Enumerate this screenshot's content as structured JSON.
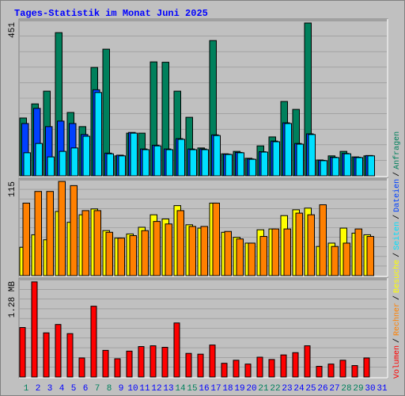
{
  "title": "Tages-Statistik im Monat Juni 2025",
  "legend_separator": "/",
  "chart_data": [
    {
      "type": "bar",
      "ylim": [
        0,
        451
      ],
      "yticks": [
        451
      ],
      "series": [
        {
          "name": "Anfragen",
          "color": "#00805c",
          "values": [
            168,
            209,
            246,
            416,
            184,
            143,
            315,
            368,
            58,
            124,
            124,
            331,
            330,
            246,
            170,
            81,
            393,
            64,
            71,
            51,
            87,
            113,
            216,
            193,
            444,
            46,
            58,
            71,
            55,
            58,
            null
          ]
        },
        {
          "name": "Dateien",
          "color": "#0040ff",
          "values": [
            152,
            196,
            143,
            159,
            152,
            120,
            250,
            66,
            60,
            126,
            78,
            89,
            78,
            108,
            78,
            78,
            119,
            63,
            68,
            49,
            70,
            101,
            154,
            94,
            122,
            45,
            54,
            65,
            54,
            59,
            null
          ]
        },
        {
          "name": "Seiten",
          "color": "#00e0ff",
          "values": [
            67,
            94,
            55,
            71,
            81,
            115,
            242,
            64,
            58,
            124,
            76,
            87,
            76,
            106,
            76,
            76,
            117,
            62,
            67,
            48,
            69,
            99,
            152,
            92,
            120,
            44,
            53,
            64,
            53,
            58,
            null
          ]
        }
      ]
    },
    {
      "type": "bar",
      "ylim": [
        0,
        115
      ],
      "yticks": [
        115
      ],
      "series": [
        {
          "name": "Besuche",
          "color": "#ffff00",
          "values": [
            34,
            49,
            43,
            77,
            64,
            73,
            80,
            54,
            45,
            50,
            58,
            73,
            68,
            84,
            61,
            57,
            87,
            52,
            46,
            39,
            55,
            56,
            72,
            79,
            81,
            35,
            39,
            57,
            51,
            49,
            null
          ]
        },
        {
          "name": "Rechner",
          "color": "#ff8000",
          "values": [
            87,
            101,
            101,
            113,
            108,
            78,
            78,
            52,
            45,
            48,
            54,
            65,
            62,
            78,
            59,
            59,
            87,
            53,
            44,
            39,
            47,
            56,
            56,
            75,
            73,
            85,
            35,
            39,
            56,
            47,
            null
          ]
        }
      ]
    },
    {
      "type": "bar",
      "ylim": [
        0,
        1.28
      ],
      "yticks": [
        {
          "value": 1.28,
          "label": "1.28 MB"
        }
      ],
      "categories": [
        "1",
        "2",
        "3",
        "4",
        "5",
        "6",
        "7",
        "8",
        "9",
        "10",
        "11",
        "12",
        "13",
        "14",
        "15",
        "16",
        "17",
        "18",
        "19",
        "20",
        "21",
        "22",
        "23",
        "24",
        "25",
        "26",
        "27",
        "28",
        "29",
        "30",
        "31"
      ],
      "category_colors": [
        "#00805c",
        "#0000ff",
        "#0000ff",
        "#0000ff",
        "#0000ff",
        "#0000ff",
        "#00805c",
        "#00805c",
        "#0000ff",
        "#0000ff",
        "#0000ff",
        "#0000ff",
        "#0000ff",
        "#00805c",
        "#00805c",
        "#0000ff",
        "#0000ff",
        "#0000ff",
        "#0000ff",
        "#0000ff",
        "#00805c",
        "#00805c",
        "#0000ff",
        "#0000ff",
        "#0000ff",
        "#0000ff",
        "#0000ff",
        "#00805c",
        "#00805c",
        "#0000ff",
        "#0000ff"
      ],
      "series": [
        {
          "name": "Volumen",
          "color": "#ff0000",
          "values": [
            0.65,
            1.25,
            0.58,
            0.69,
            0.57,
            0.25,
            0.93,
            0.35,
            0.24,
            0.34,
            0.4,
            0.41,
            0.39,
            0.71,
            0.31,
            0.3,
            0.42,
            0.18,
            0.22,
            0.17,
            0.26,
            0.23,
            0.29,
            0.32,
            0.41,
            0.14,
            0.17,
            0.22,
            0.15,
            0.25,
            null
          ]
        }
      ]
    }
  ]
}
